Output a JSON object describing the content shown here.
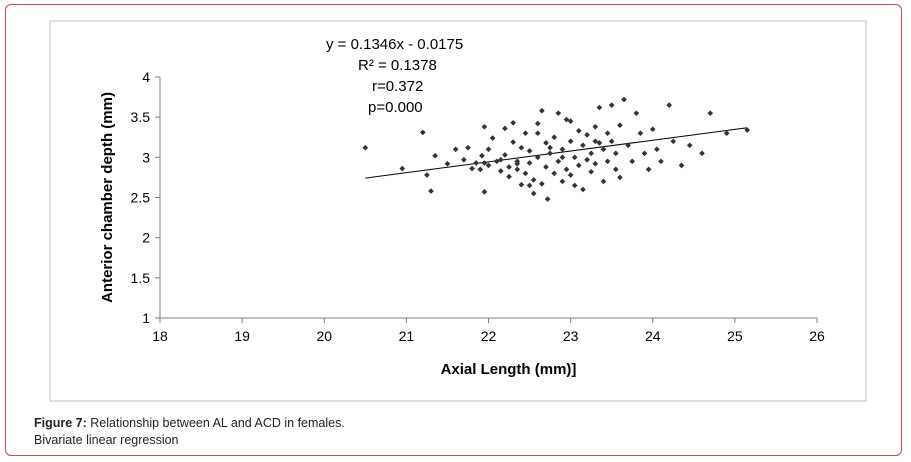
{
  "chart_data": {
    "type": "scatter",
    "title": "",
    "xlabel": "Axial Length (mm)]",
    "ylabel": "Anterior chamber depth (mm)",
    "xlim": [
      18,
      26
    ],
    "ylim": [
      1,
      4
    ],
    "x_ticks": [
      "18",
      "19",
      "20",
      "21",
      "22",
      "23",
      "24",
      "25",
      "26"
    ],
    "y_ticks": [
      "1",
      "1.5",
      "2",
      "2.5",
      "3",
      "3.5",
      "4"
    ],
    "grid": false,
    "legend": "none",
    "marker_color": "#333333",
    "trendline": {
      "slope": 0.1346,
      "intercept": -0.0175,
      "x_range": [
        20.5,
        25.15
      ]
    },
    "annotations": [
      "y = 0.1346x - 0.0175",
      "R² = 0.1378",
      "r=0.372",
      "p=0.000"
    ],
    "points": [
      [
        20.5,
        3.12
      ],
      [
        20.95,
        2.86
      ],
      [
        21.2,
        3.31
      ],
      [
        21.25,
        2.78
      ],
      [
        21.3,
        2.58
      ],
      [
        21.35,
        3.02
      ],
      [
        21.5,
        2.92
      ],
      [
        21.6,
        3.1
      ],
      [
        21.7,
        2.97
      ],
      [
        21.75,
        3.12
      ],
      [
        21.8,
        2.86
      ],
      [
        21.85,
        2.93
      ],
      [
        21.9,
        2.85
      ],
      [
        21.92,
        3.02
      ],
      [
        21.95,
        2.57
      ],
      [
        21.95,
        3.38
      ],
      [
        22.0,
        2.9
      ],
      [
        22.05,
        3.24
      ],
      [
        22.1,
        2.95
      ],
      [
        22.15,
        2.83
      ],
      [
        22.15,
        2.97
      ],
      [
        22.2,
        3.36
      ],
      [
        22.2,
        3.03
      ],
      [
        22.25,
        2.76
      ],
      [
        22.25,
        2.88
      ],
      [
        22.3,
        3.43
      ],
      [
        22.3,
        3.19
      ],
      [
        22.35,
        2.95
      ],
      [
        22.35,
        2.85
      ],
      [
        22.4,
        2.66
      ],
      [
        22.4,
        3.12
      ],
      [
        22.45,
        2.8
      ],
      [
        22.45,
        3.3
      ],
      [
        22.5,
        2.93
      ],
      [
        22.5,
        3.08
      ],
      [
        22.55,
        2.72
      ],
      [
        22.55,
        2.55
      ],
      [
        22.6,
        3.42
      ],
      [
        22.6,
        3.0
      ],
      [
        22.65,
        3.58
      ],
      [
        22.65,
        2.67
      ],
      [
        22.7,
        3.18
      ],
      [
        22.7,
        2.88
      ],
      [
        22.72,
        2.48
      ],
      [
        22.75,
        3.05
      ],
      [
        22.8,
        2.8
      ],
      [
        22.8,
        3.25
      ],
      [
        22.85,
        3.55
      ],
      [
        22.85,
        2.95
      ],
      [
        22.9,
        2.7
      ],
      [
        22.9,
        3.1
      ],
      [
        22.95,
        3.47
      ],
      [
        22.95,
        2.85
      ],
      [
        23.0,
        3.2
      ],
      [
        23.0,
        2.78
      ],
      [
        23.05,
        2.65
      ],
      [
        23.05,
        3.0
      ],
      [
        23.1,
        3.33
      ],
      [
        23.1,
        2.9
      ],
      [
        23.15,
        3.15
      ],
      [
        23.15,
        2.6
      ],
      [
        23.2,
        2.97
      ],
      [
        23.2,
        3.28
      ],
      [
        23.25,
        3.05
      ],
      [
        23.25,
        2.82
      ],
      [
        23.3,
        3.38
      ],
      [
        23.3,
        2.92
      ],
      [
        23.35,
        3.18
      ],
      [
        23.35,
        3.62
      ],
      [
        23.4,
        2.7
      ],
      [
        23.4,
        3.1
      ],
      [
        23.45,
        3.3
      ],
      [
        23.45,
        2.95
      ],
      [
        23.5,
        3.65
      ],
      [
        23.5,
        3.2
      ],
      [
        23.55,
        2.85
      ],
      [
        23.55,
        3.05
      ],
      [
        23.6,
        3.4
      ],
      [
        23.6,
        2.75
      ],
      [
        23.65,
        3.72
      ],
      [
        23.7,
        3.15
      ],
      [
        23.75,
        2.95
      ],
      [
        23.8,
        3.55
      ],
      [
        23.85,
        3.3
      ],
      [
        23.9,
        3.05
      ],
      [
        23.95,
        2.85
      ],
      [
        24.0,
        3.35
      ],
      [
        24.05,
        3.1
      ],
      [
        24.1,
        2.95
      ],
      [
        24.2,
        3.65
      ],
      [
        24.25,
        3.2
      ],
      [
        24.35,
        2.9
      ],
      [
        24.45,
        3.15
      ],
      [
        24.6,
        3.05
      ],
      [
        24.7,
        3.55
      ],
      [
        24.9,
        3.3
      ],
      [
        25.15,
        3.34
      ],
      [
        22.35,
        2.92
      ],
      [
        22.0,
        3.1
      ],
      [
        22.6,
        3.3
      ],
      [
        23.0,
        3.45
      ],
      [
        22.9,
        3.0
      ],
      [
        23.3,
        3.2
      ],
      [
        22.5,
        2.65
      ],
      [
        21.95,
        2.93
      ],
      [
        22.75,
        3.12
      ]
    ]
  },
  "caption": {
    "label": "Figure 7:",
    "text": " Relationship between AL and ACD in females.",
    "line2": "Bivariate linear regression"
  }
}
